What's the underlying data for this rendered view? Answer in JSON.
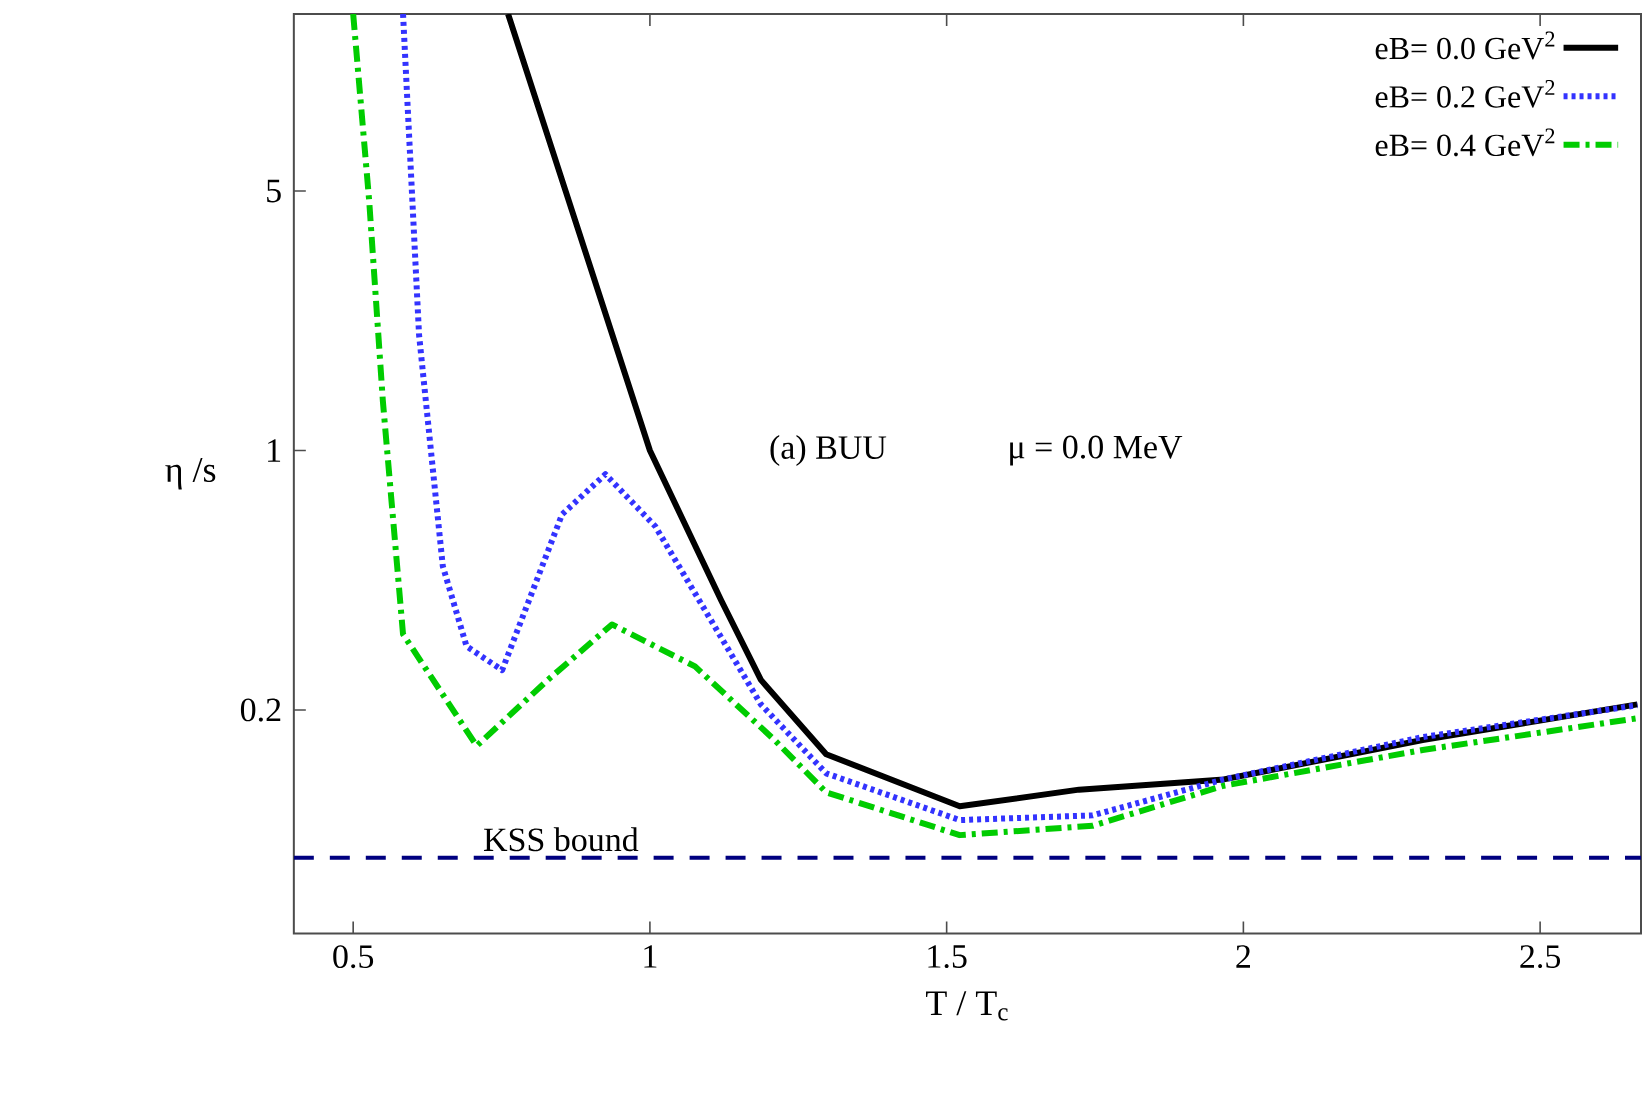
{
  "chart_data": {
    "type": "line",
    "xlabel": "T / T$_{c}$",
    "ylabel": "η /s",
    "log": "y",
    "xlim": [
      0.4,
      2.67
    ],
    "ylim": [
      0.05,
      15
    ],
    "xticks": [
      0.5,
      1,
      1.5,
      2,
      2.5
    ],
    "yticks": [
      0.2,
      1,
      5
    ],
    "legend": "top right",
    "grid": false,
    "series": [
      {
        "name": "eB= 0.0 GeV$^{2}$",
        "color": "#000000",
        "line_style": "solid",
        "x": [
          0.761,
          0.858,
          1.0,
          1.12,
          1.187,
          1.297,
          1.522,
          1.723,
          1.967,
          2.302,
          2.664
        ],
        "values": [
          15,
          5,
          1,
          0.395,
          0.241,
          0.152,
          0.11,
          0.122,
          0.13,
          0.166,
          0.207
        ]
      },
      {
        "name": "eB= 0.2 GeV$^{2}$",
        "color": "#3333ff",
        "line_style": "dotted",
        "x": [
          0.584,
          0.611,
          0.651,
          0.691,
          0.751,
          0.852,
          0.925,
          1.009,
          1.187,
          1.297,
          1.522,
          1.746,
          1.967,
          2.302,
          2.664
        ],
        "values": [
          15,
          2.05,
          0.488,
          0.297,
          0.256,
          0.673,
          0.863,
          0.625,
          0.207,
          0.135,
          0.101,
          0.104,
          0.13,
          0.169,
          0.206
        ]
      },
      {
        "name": "eB= 0.4 GeV$^{2}$",
        "color": "#00cc00",
        "line_style": "dashdot",
        "x": [
          0.5,
          0.527,
          0.55,
          0.584,
          0.708,
          0.828,
          0.936,
          1.076,
          1.21,
          1.297,
          1.522,
          1.746,
          1.967,
          2.302,
          2.664
        ],
        "values": [
          15,
          4.7,
          1.36,
          0.32,
          0.16,
          0.241,
          0.34,
          0.262,
          0.166,
          0.12,
          0.092,
          0.0975,
          0.125,
          0.156,
          0.19
        ]
      }
    ],
    "ref_lines": [
      {
        "axis": "y",
        "value": 0.08,
        "label": "KSS bound",
        "color": "#000080",
        "line_style": "dashed"
      }
    ],
    "annotations": [
      "(a) BUU",
      "μ = 0.0 MeV"
    ]
  }
}
